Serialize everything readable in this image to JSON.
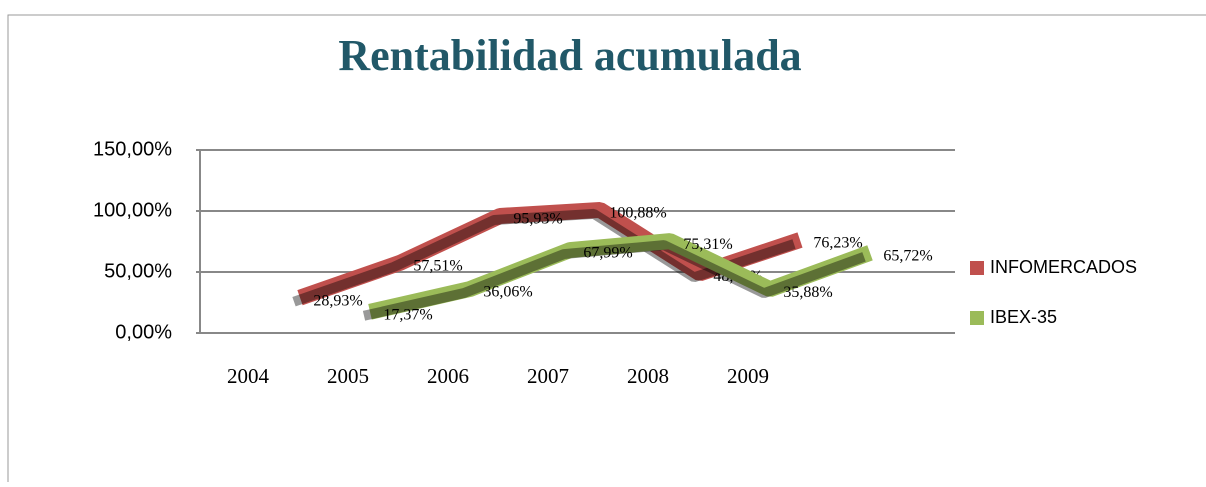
{
  "chart_data": {
    "type": "line",
    "title": "Rentabilidad acumulada",
    "categories": [
      "2004",
      "2005",
      "2006",
      "2007",
      "2008",
      "2009"
    ],
    "series": [
      {
        "name": "INFOMERCADOS",
        "color": "#c0504d",
        "values": [
          28.93,
          57.51,
          95.93,
          100.88,
          48.92,
          76.23
        ],
        "value_labels": [
          "28,93%",
          "57,51%",
          "95,93%",
          "100,88%",
          "48,92%",
          "76,23%"
        ]
      },
      {
        "name": "IBEX-35",
        "color": "#9bbb59",
        "values": [
          17.37,
          36.06,
          67.99,
          75.31,
          35.88,
          65.72
        ],
        "value_labels": [
          "17,37%",
          "36,06%",
          "67,99%",
          "75,31%",
          "35,88%",
          "65,72%"
        ]
      }
    ],
    "ylim": [
      0,
      150
    ],
    "yticks": [
      {
        "value": 0,
        "label": "0,00%"
      },
      {
        "value": 50,
        "label": "50,00%"
      },
      {
        "value": 100,
        "label": "100,00%"
      },
      {
        "value": 150,
        "label": "150,00%"
      }
    ],
    "grid": true,
    "legend": "right"
  }
}
